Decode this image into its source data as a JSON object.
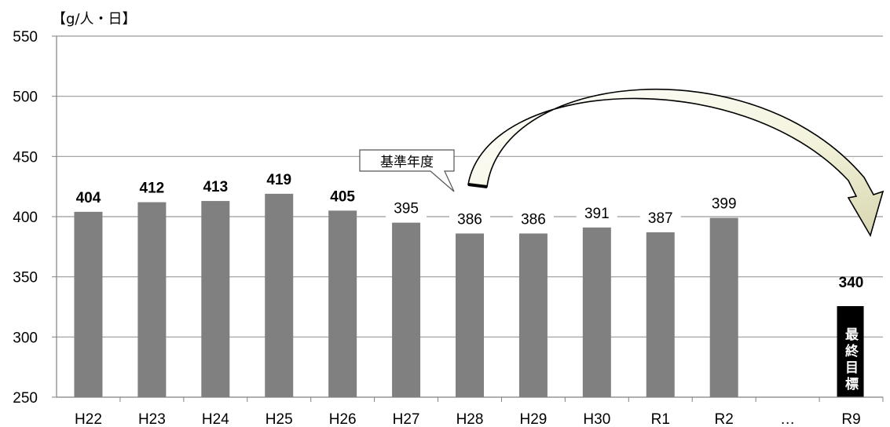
{
  "chart_data": {
    "type": "bar",
    "unit_label": "【g/人・日】",
    "ylim": [
      250,
      550
    ],
    "yticks": [
      250,
      300,
      350,
      400,
      450,
      500,
      550
    ],
    "categories": [
      "H22",
      "H23",
      "H24",
      "H25",
      "H26",
      "H27",
      "H28",
      "H29",
      "H30",
      "R1",
      "R2",
      "…",
      "R9"
    ],
    "values": [
      404,
      412,
      413,
      419,
      405,
      395,
      386,
      386,
      391,
      387,
      399,
      null,
      340
    ],
    "data_labels": [
      "404",
      "412",
      "413",
      "419",
      "405",
      "395",
      "386",
      "386",
      "391",
      "387",
      "399",
      "",
      "340"
    ],
    "bar_color": "#808080",
    "target_bar_color": "#000000",
    "target_bar_label": "最終目標",
    "callout_text": "基準年度",
    "grid": true
  }
}
